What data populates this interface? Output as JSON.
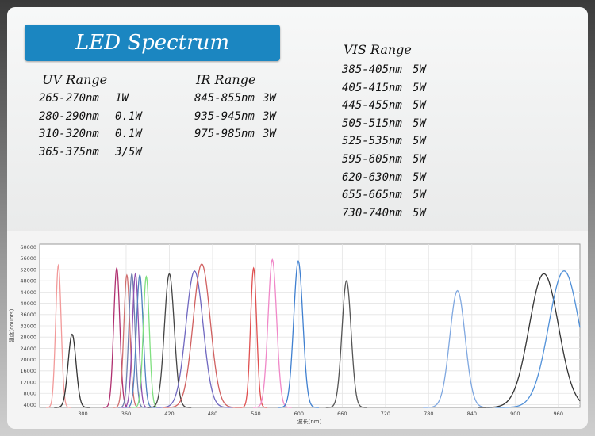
{
  "title": "LED Spectrum",
  "uv": {
    "heading": "UV Range",
    "items": [
      {
        "range": "265-270nm",
        "power": "1W"
      },
      {
        "range": "280-290nm",
        "power": "0.1W"
      },
      {
        "range": "310-320nm",
        "power": "0.1W"
      },
      {
        "range": "365-375nm",
        "power": "3/5W"
      }
    ]
  },
  "ir": {
    "heading": "IR Range",
    "items": [
      {
        "range": "845-855nm",
        "power": "3W"
      },
      {
        "range": "935-945nm",
        "power": "3W"
      },
      {
        "range": "975-985nm",
        "power": "3W"
      }
    ]
  },
  "vis": {
    "heading": "VIS Range",
    "items": [
      {
        "range": "385-405nm",
        "power": "5W"
      },
      {
        "range": "405-415nm",
        "power": "5W"
      },
      {
        "range": "445-455nm",
        "power": "5W"
      },
      {
        "range": "505-515nm",
        "power": "5W"
      },
      {
        "range": "525-535nm",
        "power": "5W"
      },
      {
        "range": "595-605nm",
        "power": "5W"
      },
      {
        "range": "620-630nm",
        "power": "5W"
      },
      {
        "range": "655-665nm",
        "power": "5W"
      },
      {
        "range": "730-740nm",
        "power": "5W"
      }
    ]
  },
  "chart_data": {
    "type": "line",
    "xlabel": "波长(nm)",
    "ylabel": "强度(counts)",
    "xlim": [
      240,
      990
    ],
    "ylim": [
      3000,
      61000
    ],
    "x_ticks": [
      300,
      360,
      420,
      480,
      540,
      600,
      660,
      720,
      780,
      840,
      900,
      960
    ],
    "y_ticks": [
      4000,
      8000,
      12000,
      16000,
      20000,
      24000,
      28000,
      32000,
      36000,
      40000,
      44000,
      48000,
      52000,
      56000,
      60000
    ],
    "grid": true,
    "legend": "none",
    "series": [
      {
        "color": "#f29a9a",
        "peak_nm": 266,
        "peak_counts": 53500,
        "fwhm_nm": 9
      },
      {
        "color": "#333333",
        "peak_nm": 285,
        "peak_counts": 29000,
        "fwhm_nm": 13
      },
      {
        "color": "#b03070",
        "peak_nm": 347,
        "peak_counts": 52500,
        "fwhm_nm": 10
      },
      {
        "color": "#d07070",
        "peak_nm": 361,
        "peak_counts": 50000,
        "fwhm_nm": 10
      },
      {
        "color": "#7080b0",
        "peak_nm": 368,
        "peak_counts": 50500,
        "fwhm_nm": 10
      },
      {
        "color": "#9050b0",
        "peak_nm": 373,
        "peak_counts": 50500,
        "fwhm_nm": 10
      },
      {
        "color": "#5080c0",
        "peak_nm": 379,
        "peak_counts": 50000,
        "fwhm_nm": 11
      },
      {
        "color": "#80e080",
        "peak_nm": 388,
        "peak_counts": 49500,
        "fwhm_nm": 10
      },
      {
        "color": "#444444",
        "peak_nm": 420,
        "peak_counts": 50500,
        "fwhm_nm": 16
      },
      {
        "color": "#7068c0",
        "peak_nm": 455,
        "peak_counts": 51500,
        "fwhm_nm": 28
      },
      {
        "color": "#d06060",
        "peak_nm": 465,
        "peak_counts": 54000,
        "fwhm_nm": 28
      },
      {
        "color": "#e05050",
        "peak_nm": 537,
        "peak_counts": 52500,
        "fwhm_nm": 10
      },
      {
        "color": "#f088c8",
        "peak_nm": 563,
        "peak_counts": 55500,
        "fwhm_nm": 14
      },
      {
        "color": "#4080d0",
        "peak_nm": 599,
        "peak_counts": 55000,
        "fwhm_nm": 15
      },
      {
        "color": "#555555",
        "peak_nm": 666,
        "peak_counts": 48000,
        "fwhm_nm": 15
      },
      {
        "color": "#80a8e0",
        "peak_nm": 820,
        "peak_counts": 44500,
        "fwhm_nm": 25
      },
      {
        "color": "#333333",
        "peak_nm": 940,
        "peak_counts": 50500,
        "fwhm_nm": 48
      },
      {
        "color": "#5090d8",
        "peak_nm": 968,
        "peak_counts": 51500,
        "fwhm_nm": 50
      }
    ]
  }
}
